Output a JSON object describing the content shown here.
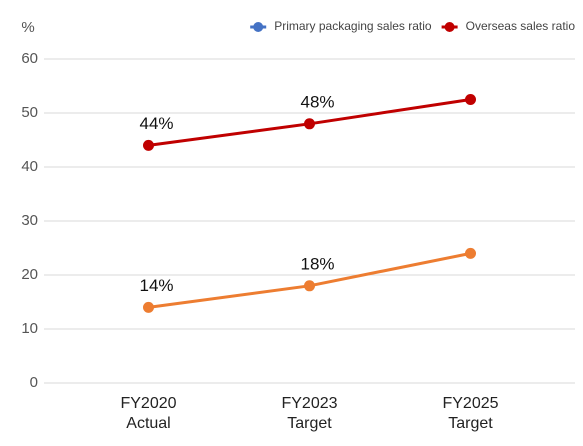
{
  "chart_data": {
    "type": "line",
    "y_label": "%",
    "categories": [
      [
        "FY2020",
        "Actual"
      ],
      [
        "FY2023",
        "Target"
      ],
      [
        "FY2025",
        "Target"
      ]
    ],
    "series": [
      {
        "name": "Primary packaging sales ratio",
        "color": "#ed7d31",
        "legend_color": "#4472c4",
        "values": [
          14,
          18,
          24
        ],
        "value_labels": [
          "14%",
          "18%",
          null
        ]
      },
      {
        "name": "Overseas sales ratio",
        "color": "#c00000",
        "legend_color": "#c00000",
        "values": [
          44,
          48,
          52.5
        ],
        "value_labels": [
          "44%",
          "48%",
          null
        ]
      }
    ],
    "ylim": [
      0,
      60
    ],
    "yticks": [
      0,
      10,
      20,
      30,
      40,
      50,
      60
    ],
    "grid": true,
    "legend": "top-right"
  }
}
